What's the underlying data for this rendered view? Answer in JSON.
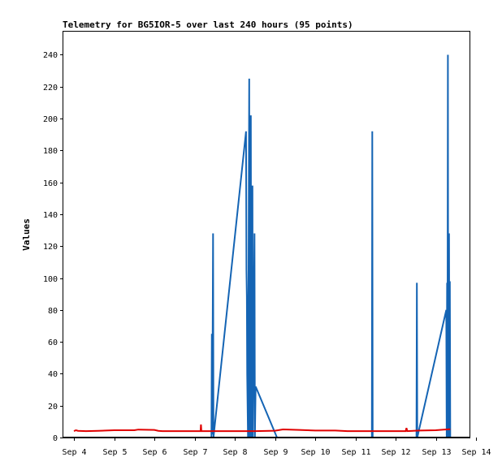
{
  "chart_data": {
    "type": "line",
    "title": "Telemetry for BG5IOR-5 over last 240 hours (95 points)",
    "xlabel": "",
    "ylabel": "Values",
    "x_ticks": [
      "Sep 4",
      "Sep 5",
      "Sep 6",
      "Sep 7",
      "Sep 8",
      "Sep 9",
      "Sep 10",
      "Sep 11",
      "Sep 12",
      "Sep 13",
      "Sep 14"
    ],
    "xlim": [
      0,
      10
    ],
    "y_ticks": [
      "0",
      "20",
      "40",
      "60",
      "80",
      "100",
      "120",
      "140",
      "160",
      "180",
      "200",
      "220",
      "240"
    ],
    "ylim": [
      0,
      255
    ],
    "grid": false,
    "legend": "none",
    "series": [
      {
        "color": "#1464b4",
        "points": [
          [
            3.42,
            0
          ],
          [
            3.43,
            65
          ],
          [
            3.44,
            2
          ],
          [
            3.46,
            128
          ],
          [
            3.47,
            0
          ],
          [
            4.28,
            192
          ],
          [
            4.29,
            105
          ],
          [
            4.3,
            88
          ],
          [
            4.31,
            40
          ],
          [
            4.33,
            0
          ],
          [
            4.36,
            225
          ],
          [
            4.37,
            0
          ],
          [
            4.4,
            202
          ],
          [
            4.41,
            0
          ],
          [
            4.44,
            158
          ],
          [
            4.45,
            0
          ],
          [
            4.49,
            128
          ],
          [
            4.5,
            0
          ],
          [
            4.52,
            32
          ],
          [
            5.05,
            0
          ],
          [
            7.41,
            0
          ],
          [
            7.42,
            192
          ],
          [
            7.43,
            0
          ],
          [
            8.52,
            0
          ],
          [
            8.53,
            97
          ],
          [
            8.54,
            0
          ],
          [
            9.26,
            80
          ],
          [
            9.27,
            0
          ],
          [
            9.28,
            97
          ],
          [
            9.29,
            40
          ],
          [
            9.3,
            240
          ],
          [
            9.31,
            0
          ],
          [
            9.33,
            128
          ],
          [
            9.34,
            0
          ],
          [
            9.35,
            98
          ],
          [
            9.36,
            0
          ]
        ]
      },
      {
        "color": "#e00000",
        "points": [
          [
            0.0,
            4
          ],
          [
            0.05,
            4.6
          ],
          [
            0.1,
            4.2
          ],
          [
            0.3,
            4.0
          ],
          [
            0.6,
            4.2
          ],
          [
            1.0,
            4.6
          ],
          [
            1.5,
            4.6
          ],
          [
            1.6,
            5.0
          ],
          [
            2.0,
            4.8
          ],
          [
            2.1,
            4.2
          ],
          [
            2.2,
            4.0
          ],
          [
            2.6,
            4.0
          ],
          [
            3.15,
            4.0
          ],
          [
            3.16,
            8.2
          ],
          [
            3.17,
            4.0
          ],
          [
            3.5,
            4.0
          ],
          [
            4.0,
            4.0
          ],
          [
            4.5,
            4.0
          ],
          [
            5.0,
            4.3
          ],
          [
            5.2,
            5.1
          ],
          [
            5.6,
            4.8
          ],
          [
            6.0,
            4.4
          ],
          [
            6.5,
            4.4
          ],
          [
            6.8,
            4.0
          ],
          [
            7.5,
            4.0
          ],
          [
            8.0,
            4.0
          ],
          [
            8.25,
            4.0
          ],
          [
            8.27,
            6.0
          ],
          [
            8.29,
            4.0
          ],
          [
            8.6,
            4.4
          ],
          [
            9.0,
            4.6
          ],
          [
            9.2,
            5.0
          ],
          [
            9.36,
            5.2
          ]
        ]
      }
    ]
  }
}
